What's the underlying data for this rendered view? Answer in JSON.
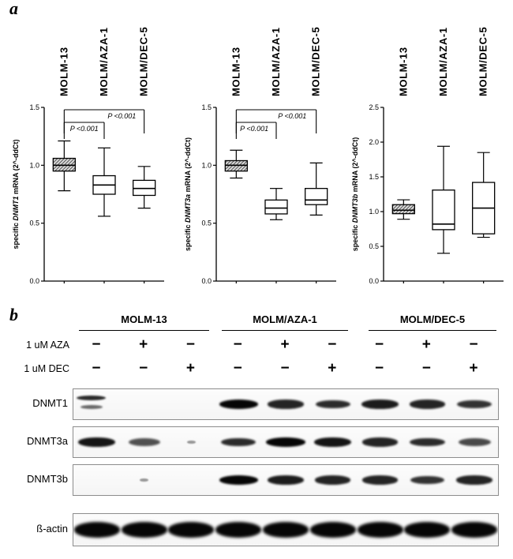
{
  "figure": {
    "panel_a_label": "a",
    "panel_b_label": "b"
  },
  "chart_data": [
    {
      "type": "box",
      "ylabel_prefix": "specific ",
      "gene": "DNMT1",
      "ylabel_suffix": " mRNA (2^-ddCt)",
      "categories": [
        "MOLM-13",
        "MOLM/AZA-1",
        "MOLM/DEC-5"
      ],
      "ylim": [
        0,
        1.5
      ],
      "yticks": [
        "0.0",
        "0.5",
        "1.0",
        "1.5"
      ],
      "boxes": [
        {
          "whislo": 0.78,
          "q1": 0.95,
          "med": 1.0,
          "q3": 1.06,
          "whishi": 1.21,
          "hatched": true
        },
        {
          "whislo": 0.56,
          "q1": 0.75,
          "med": 0.83,
          "q3": 0.91,
          "whishi": 1.15,
          "hatched": false
        },
        {
          "whislo": 0.63,
          "q1": 0.74,
          "med": 0.8,
          "q3": 0.87,
          "whishi": 0.99,
          "hatched": false
        }
      ],
      "annotations": [
        {
          "text": "P <0.001",
          "from": 0,
          "to": 1,
          "row": 1,
          "text_pos": 0.5
        },
        {
          "text": "P <0.001",
          "from": 0,
          "to": 2,
          "row": 2,
          "text_pos": 0.72
        }
      ]
    },
    {
      "type": "box",
      "ylabel_prefix": "specific ",
      "gene": "DNMT3a",
      "ylabel_suffix": " mRNA (2^-ddCt)",
      "categories": [
        "MOLM-13",
        "MOLM/AZA-1",
        "MOLM/DEC-5"
      ],
      "ylim": [
        0,
        1.5
      ],
      "yticks": [
        "0.0",
        "0.5",
        "1.0",
        "1.5"
      ],
      "boxes": [
        {
          "whislo": 0.89,
          "q1": 0.95,
          "med": 1.0,
          "q3": 1.04,
          "whishi": 1.13,
          "hatched": true
        },
        {
          "whislo": 0.53,
          "q1": 0.58,
          "med": 0.63,
          "q3": 0.7,
          "whishi": 0.8,
          "hatched": false
        },
        {
          "whislo": 0.57,
          "q1": 0.66,
          "med": 0.7,
          "q3": 0.8,
          "whishi": 1.02,
          "hatched": false
        }
      ],
      "annotations": [
        {
          "text": "P <0.001",
          "from": 0,
          "to": 1,
          "row": 1,
          "text_pos": 0.45
        },
        {
          "text": "P <0.001",
          "from": 0,
          "to": 2,
          "row": 2,
          "text_pos": 0.7
        }
      ]
    },
    {
      "type": "box",
      "ylabel_prefix": "specific ",
      "gene": "DNMT3b",
      "ylabel_suffix": " mRNA (2^-ddCt)",
      "categories": [
        "MOLM-13",
        "MOLM/AZA-1",
        "MOLM/DEC-5"
      ],
      "ylim": [
        0,
        2.5
      ],
      "yticks": [
        "0.0",
        "0.5",
        "1.0",
        "1.5",
        "2.0",
        "2.5"
      ],
      "boxes": [
        {
          "whislo": 0.89,
          "q1": 0.97,
          "med": 1.02,
          "q3": 1.1,
          "whishi": 1.17,
          "hatched": true
        },
        {
          "whislo": 0.4,
          "q1": 0.74,
          "med": 0.82,
          "q3": 1.31,
          "whishi": 1.94,
          "hatched": false
        },
        {
          "whislo": 0.63,
          "q1": 0.68,
          "med": 1.05,
          "q3": 1.42,
          "whishi": 1.85,
          "hatched": false
        }
      ],
      "annotations": []
    }
  ],
  "panel_b": {
    "groups": [
      {
        "label": "MOLM-13"
      },
      {
        "label": "MOLM/AZA-1"
      },
      {
        "label": "MOLM/DEC-5"
      }
    ],
    "treatments": [
      {
        "label": "1 uM AZA",
        "signs": [
          "−",
          "+",
          "−",
          "−",
          "+",
          "−",
          "−",
          "+",
          "−"
        ]
      },
      {
        "label": "1 uM DEC",
        "signs": [
          "−",
          "−",
          "+",
          "−",
          "−",
          "+",
          "−",
          "−",
          "+"
        ]
      }
    ],
    "blots": [
      {
        "label": "DNMT1",
        "lanes": [
          0.75,
          0,
          0,
          1.0,
          0.8,
          0.75,
          0.85,
          0.8,
          0.7
        ],
        "doublet_lanes": [
          0
        ],
        "thick": false
      },
      {
        "label": "DNMT3a",
        "lanes": [
          0.9,
          0.5,
          0.06,
          0.75,
          1.0,
          0.9,
          0.8,
          0.75,
          0.55
        ],
        "doublet_lanes": [],
        "thick": false
      },
      {
        "label": "DNMT3b",
        "lanes": [
          0,
          0.06,
          0,
          1.0,
          0.85,
          0.8,
          0.8,
          0.7,
          0.8
        ],
        "doublet_lanes": [],
        "thick": false
      },
      {
        "label": "ß-actin",
        "lanes": [
          1,
          1,
          1,
          1,
          1,
          1,
          1,
          1,
          1
        ],
        "doublet_lanes": [],
        "thick": true
      }
    ]
  },
  "colors": {
    "ink": "#000000",
    "blot_border": "#8c8c8c"
  }
}
